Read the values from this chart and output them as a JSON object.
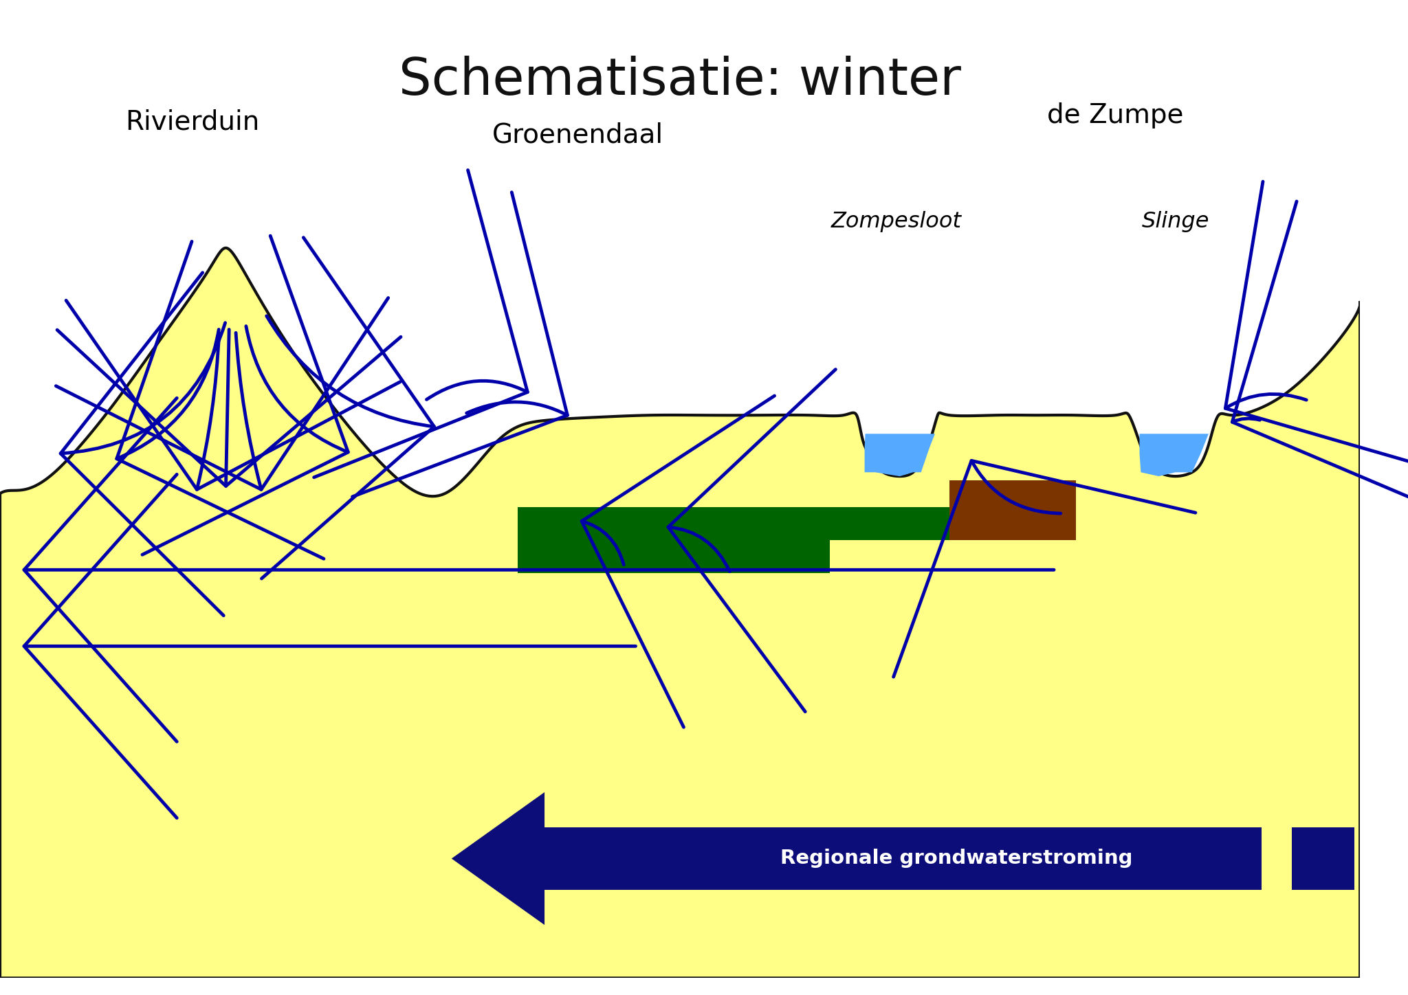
{
  "title": "Schematisatie: winter",
  "white_bg": "#FFFFFF",
  "sand_color": "#FFFF88",
  "outline_color": "#111111",
  "water_color": "#55AAFF",
  "green_color": "#006400",
  "brown_color": "#7B3300",
  "arrow_color": "#0000AA",
  "regionale_color": "#0D0D7A",
  "label_rivierduin": "Rivierduin",
  "label_groenendaal": "Groenendaal",
  "label_zumpe": "de Zumpe",
  "label_zompesloot": "Zompesloot",
  "label_slinge": "Slinge",
  "label_regionale": "Regionale grondwaterstroming",
  "title_fs": 54,
  "label_fs": 28,
  "italic_fs": 23,
  "reg_fs": 21
}
